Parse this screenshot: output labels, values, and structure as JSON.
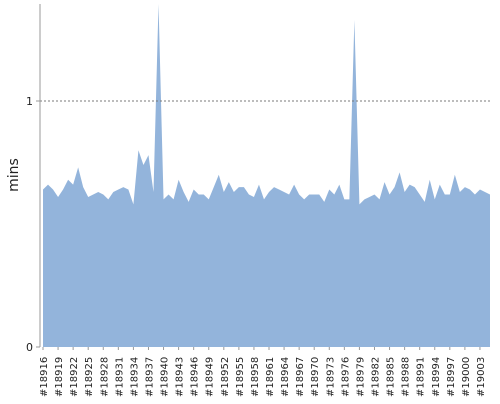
{
  "chart_data": {
    "type": "area",
    "title": "",
    "xlabel": "",
    "ylabel": "mins",
    "x_ticks": [
      "#18916",
      "#18919",
      "#18922",
      "#18925",
      "#18928",
      "#18931",
      "#18934",
      "#18937",
      "#18940",
      "#18943",
      "#18946",
      "#18949",
      "#18952",
      "#18955",
      "#18958",
      "#18961",
      "#18964",
      "#18967",
      "#18970",
      "#18973",
      "#18976",
      "#18979",
      "#18982",
      "#18985",
      "#18988",
      "#18991",
      "#18994",
      "#18997",
      "#19000",
      "#19003"
    ],
    "y_ticks": [
      {
        "value": 0,
        "label": "0"
      },
      {
        "value": 1,
        "label": "1"
      }
    ],
    "ylim": [
      0,
      1.4
    ],
    "reference_line": {
      "value": 1,
      "style": "dotted"
    },
    "grid": false,
    "legend": "none",
    "color": "#93b4db",
    "series": [
      {
        "x": [
          18916,
          18917,
          18918,
          18919,
          18920,
          18921,
          18922,
          18923,
          18924,
          18925,
          18926,
          18927,
          18928,
          18929,
          18930,
          18931,
          18932,
          18933,
          18934,
          18935,
          18936,
          18937,
          18938,
          18939,
          18940,
          18941,
          18942,
          18943,
          18944,
          18945,
          18946,
          18947,
          18948,
          18949,
          18950,
          18951,
          18952,
          18953,
          18954,
          18955,
          18956,
          18957,
          18958,
          18959,
          18960,
          18961,
          18962,
          18963,
          18964,
          18965,
          18966,
          18967,
          18968,
          18969,
          18970,
          18971,
          18972,
          18973,
          18974,
          18975,
          18976,
          18977,
          18978,
          18979,
          18980,
          18981,
          18982,
          18983,
          18984,
          18985,
          18986,
          18987,
          18988,
          18989,
          18990,
          18991,
          18992,
          18993,
          18994,
          18995,
          18996,
          18997,
          18998,
          18999,
          19000,
          19001,
          19002,
          19003,
          19004,
          19005
        ],
        "values": [
          0.64,
          0.66,
          0.64,
          0.61,
          0.64,
          0.68,
          0.66,
          0.73,
          0.65,
          0.61,
          0.62,
          0.63,
          0.62,
          0.6,
          0.63,
          0.64,
          0.65,
          0.64,
          0.58,
          0.8,
          0.74,
          0.78,
          0.63,
          1.4,
          0.6,
          0.62,
          0.6,
          0.68,
          0.63,
          0.59,
          0.64,
          0.62,
          0.62,
          0.6,
          0.65,
          0.7,
          0.63,
          0.67,
          0.63,
          0.65,
          0.65,
          0.62,
          0.61,
          0.66,
          0.6,
          0.63,
          0.65,
          0.64,
          0.63,
          0.62,
          0.66,
          0.62,
          0.6,
          0.62,
          0.62,
          0.62,
          0.59,
          0.64,
          0.62,
          0.66,
          0.6,
          0.6,
          1.33,
          0.58,
          0.6,
          0.61,
          0.62,
          0.6,
          0.67,
          0.62,
          0.65,
          0.71,
          0.63,
          0.66,
          0.65,
          0.62,
          0.59,
          0.68,
          0.6,
          0.66,
          0.62,
          0.62,
          0.7,
          0.63,
          0.65,
          0.64,
          0.62,
          0.64,
          0.63,
          0.62
        ]
      }
    ]
  }
}
